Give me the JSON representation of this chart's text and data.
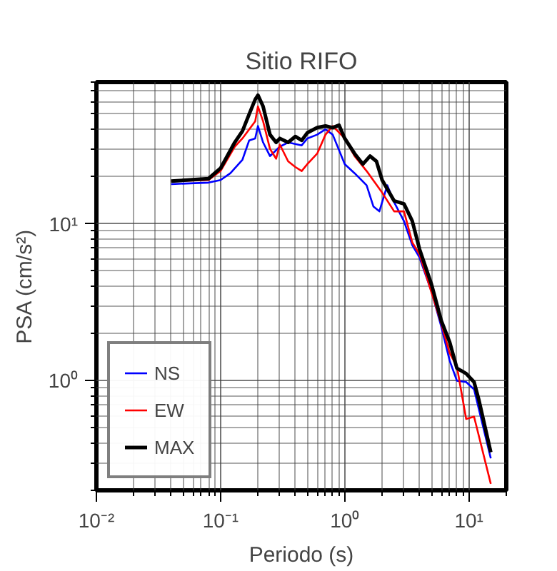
{
  "chart_data": {
    "type": "line",
    "title": "Sitio RIFO",
    "xlabel": "Periodo (s)",
    "ylabel": "PSA (cm/s²)",
    "log": "xy",
    "grid": true,
    "legend": "bottom left",
    "line_style": "solid",
    "xlim": [
      0.01,
      20
    ],
    "ylim": [
      0.2,
      80
    ],
    "xticks": [
      {
        "value": 0.01,
        "label": "10⁻²"
      },
      {
        "value": 0.1,
        "label": "10⁻¹"
      },
      {
        "value": 1,
        "label": "10⁰"
      },
      {
        "value": 10,
        "label": "10¹"
      }
    ],
    "yticks": [
      {
        "value": 1,
        "label": "10⁰"
      },
      {
        "value": 10,
        "label": "10¹"
      }
    ],
    "series": [
      {
        "name": "NS",
        "color": "#0000ff",
        "x": [
          0.04,
          0.08,
          0.1,
          0.12,
          0.15,
          0.17,
          0.19,
          0.2,
          0.22,
          0.25,
          0.3,
          0.35,
          0.45,
          0.5,
          0.6,
          0.7,
          0.8,
          1.0,
          1.2,
          1.5,
          1.7,
          1.9,
          2.2,
          2.5,
          3.0,
          3.5,
          4,
          5,
          6,
          7,
          8,
          9.5,
          11,
          15
        ],
        "values": [
          17.9,
          18.3,
          19,
          21,
          25.6,
          34,
          35,
          42,
          33,
          27,
          31,
          33,
          31.6,
          35,
          37,
          40,
          37,
          24,
          21,
          17.6,
          12.9,
          12,
          17.6,
          13.7,
          10.4,
          7.3,
          6.1,
          3.7,
          2.2,
          1.34,
          1.0,
          0.98,
          0.88,
          0.32
        ]
      },
      {
        "name": "EW",
        "color": "#ff0000",
        "x": [
          0.04,
          0.08,
          0.1,
          0.13,
          0.15,
          0.17,
          0.19,
          0.2,
          0.22,
          0.25,
          0.28,
          0.3,
          0.35,
          0.4,
          0.45,
          0.5,
          0.6,
          0.7,
          0.8,
          1.0,
          1.2,
          1.5,
          2.0,
          2.5,
          3.0,
          3.5,
          4,
          6,
          7,
          8,
          9.5,
          11,
          15
        ],
        "values": [
          18.7,
          19,
          21.7,
          31,
          35,
          40,
          45,
          56,
          45,
          30,
          26,
          32,
          25,
          23,
          21.7,
          24,
          28,
          37,
          42,
          35,
          27,
          21.7,
          15.8,
          12,
          12,
          7.6,
          6.4,
          2.3,
          1.5,
          1.23,
          0.57,
          0.59,
          0.22
        ]
      },
      {
        "name": "MAX",
        "color": "#000000",
        "x": [
          0.04,
          0.08,
          0.1,
          0.13,
          0.15,
          0.17,
          0.19,
          0.2,
          0.22,
          0.25,
          0.28,
          0.3,
          0.35,
          0.4,
          0.45,
          0.5,
          0.6,
          0.7,
          0.8,
          0.9,
          1.0,
          1.2,
          1.4,
          1.6,
          1.8,
          2.0,
          2.5,
          3.0,
          3.5,
          4,
          5,
          6,
          7,
          8,
          9.5,
          11,
          12,
          15
        ],
        "values": [
          18.7,
          19.4,
          22.6,
          33,
          39,
          50,
          62,
          66,
          56,
          37,
          33,
          35,
          33,
          36,
          34,
          38,
          41,
          42,
          41,
          42.5,
          35,
          28,
          24,
          27,
          25,
          19,
          14,
          13.4,
          10.4,
          6.9,
          4.1,
          2.4,
          1.76,
          1.2,
          1.11,
          0.98,
          0.76,
          0.35
        ]
      }
    ]
  }
}
